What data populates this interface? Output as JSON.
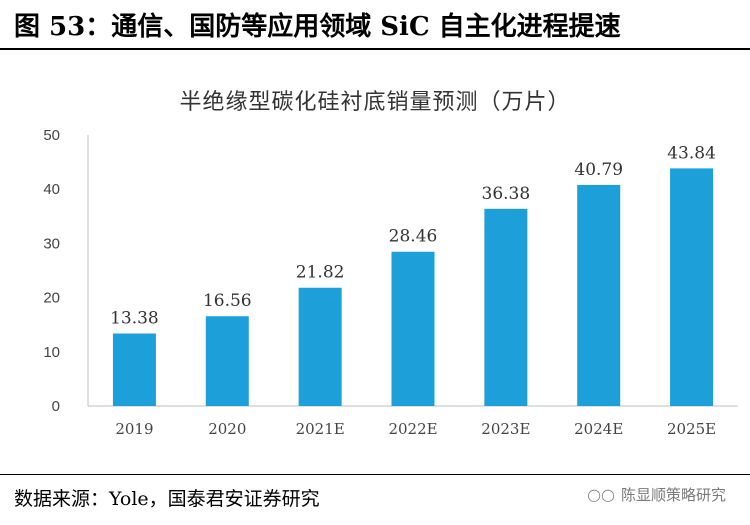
{
  "figure": {
    "title": "图 53：通信、国防等应用领域 SiC 自主化进程提速",
    "source": "数据来源：Yole，国泰君安证券研究",
    "watermark": "陈显顺策略研究"
  },
  "colors": {
    "bar": "#1d9fd9",
    "axis": "#bfbfbf"
  },
  "chart_data": {
    "type": "bar",
    "title": "半绝缘型碳化硅衬底销量预测（万片）",
    "categories": [
      "2019",
      "2020",
      "2021E",
      "2022E",
      "2023E",
      "2024E",
      "2025E"
    ],
    "values": [
      13.38,
      16.56,
      21.82,
      28.46,
      36.38,
      40.79,
      43.84
    ],
    "data_labels": [
      "13.38",
      "16.56",
      "21.82",
      "28.46",
      "36.38",
      "40.79",
      "43.84"
    ],
    "ylim": [
      0,
      50
    ],
    "yticks": [
      0,
      10,
      20,
      30,
      40,
      50
    ],
    "xlabel": "",
    "ylabel": "",
    "grid": false,
    "legend": "none"
  }
}
